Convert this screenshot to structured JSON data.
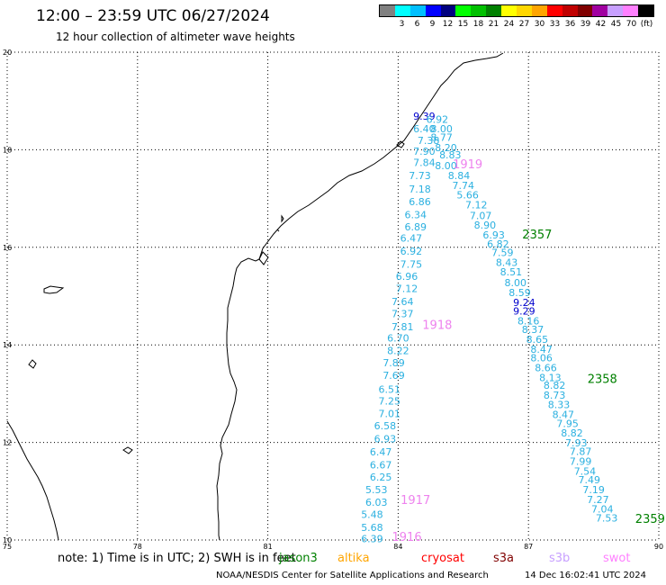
{
  "header": {
    "title": "12:00 – 23:59 UTC 06/27/2024",
    "subtitle": "12 hour collection of altimeter wave heights"
  },
  "legend": {
    "swatches": [
      {
        "color": "#808080",
        "label": ""
      },
      {
        "color": "#00ffff",
        "label": "3"
      },
      {
        "color": "#00bfff",
        "label": "6"
      },
      {
        "color": "#0000ff",
        "label": "9"
      },
      {
        "color": "#000080",
        "label": "12"
      },
      {
        "color": "#00ff00",
        "label": "15"
      },
      {
        "color": "#00c000",
        "label": "18"
      },
      {
        "color": "#008000",
        "label": "21"
      },
      {
        "color": "#ffff00",
        "label": "24"
      },
      {
        "color": "#ffd700",
        "label": "27"
      },
      {
        "color": "#ffa500",
        "label": "30"
      },
      {
        "color": "#ff0000",
        "label": "33"
      },
      {
        "color": "#c00000",
        "label": "36"
      },
      {
        "color": "#800000",
        "label": "39"
      },
      {
        "color": "#a000a0",
        "label": "42"
      },
      {
        "color": "#c8a0ff",
        "label": "45"
      },
      {
        "color": "#ff80ff",
        "label": "70"
      },
      {
        "color": "#000000",
        "label": "(ft)"
      }
    ]
  },
  "map": {
    "lon_ticks": [
      "75",
      "78",
      "81",
      "84",
      "87",
      "90"
    ],
    "lat_ticks": [
      "20",
      "18",
      "16",
      "14",
      "12",
      "10"
    ],
    "colors": {
      "light": "#2bb0e0",
      "medium": "#0000cd",
      "time_green": "#008000",
      "time_pink": "#ee82ee"
    },
    "track_west": [
      {
        "v": "9.39",
        "lon": 84.6,
        "lat": 18.62,
        "c": "medium"
      },
      {
        "v": "6.92",
        "lon": 84.9,
        "lat": 18.55,
        "c": "light"
      },
      {
        "v": "6.40",
        "lon": 84.6,
        "lat": 18.36,
        "c": "light"
      },
      {
        "v": "8.00",
        "lon": 85.0,
        "lat": 18.36,
        "c": "light"
      },
      {
        "v": "8.77",
        "lon": 85.0,
        "lat": 18.18,
        "c": "light"
      },
      {
        "v": "7.38",
        "lon": 84.7,
        "lat": 18.12,
        "c": "light"
      },
      {
        "v": "8.20",
        "lon": 85.1,
        "lat": 17.97,
        "c": "light"
      },
      {
        "v": "7.90",
        "lon": 84.6,
        "lat": 17.9,
        "c": "light"
      },
      {
        "v": "8.83",
        "lon": 85.2,
        "lat": 17.82,
        "c": "light"
      },
      {
        "v": "7.84",
        "lon": 84.6,
        "lat": 17.67,
        "c": "light"
      },
      {
        "v": "8.00",
        "lon": 85.1,
        "lat": 17.6,
        "c": "light"
      },
      {
        "v": "7.73",
        "lon": 84.5,
        "lat": 17.4,
        "c": "light"
      },
      {
        "v": "8.84",
        "lon": 85.4,
        "lat": 17.4,
        "c": "light"
      },
      {
        "v": "7.74",
        "lon": 85.5,
        "lat": 17.2,
        "c": "light"
      },
      {
        "v": "7.18",
        "lon": 84.5,
        "lat": 17.12,
        "c": "light"
      },
      {
        "v": "5.66",
        "lon": 85.6,
        "lat": 17.0,
        "c": "light"
      },
      {
        "v": "6.86",
        "lon": 84.5,
        "lat": 16.86,
        "c": "light"
      },
      {
        "v": "7.12",
        "lon": 85.8,
        "lat": 16.8,
        "c": "light"
      },
      {
        "v": "6.34",
        "lon": 84.4,
        "lat": 16.6,
        "c": "light"
      },
      {
        "v": "7.07",
        "lon": 85.9,
        "lat": 16.58,
        "c": "light"
      },
      {
        "v": "8.90",
        "lon": 86.0,
        "lat": 16.38,
        "c": "light"
      },
      {
        "v": "6.89",
        "lon": 84.4,
        "lat": 16.35,
        "c": "light"
      },
      {
        "v": "6.93",
        "lon": 86.2,
        "lat": 16.18,
        "c": "light"
      },
      {
        "v": "6.47",
        "lon": 84.3,
        "lat": 16.12,
        "c": "light"
      },
      {
        "v": "6.82",
        "lon": 86.3,
        "lat": 16.0,
        "c": "light"
      },
      {
        "v": "6.92",
        "lon": 84.3,
        "lat": 15.85,
        "c": "light"
      },
      {
        "v": "7.59",
        "lon": 86.4,
        "lat": 15.82,
        "c": "light"
      },
      {
        "v": "8.43",
        "lon": 86.5,
        "lat": 15.62,
        "c": "light"
      },
      {
        "v": "7.75",
        "lon": 84.3,
        "lat": 15.58,
        "c": "light"
      },
      {
        "v": "8.51",
        "lon": 86.6,
        "lat": 15.42,
        "c": "light"
      },
      {
        "v": "6.96",
        "lon": 84.2,
        "lat": 15.33,
        "c": "light"
      },
      {
        "v": "8.00",
        "lon": 86.7,
        "lat": 15.2,
        "c": "light"
      },
      {
        "v": "7.12",
        "lon": 84.2,
        "lat": 15.08,
        "c": "light"
      },
      {
        "v": "8.59",
        "lon": 86.8,
        "lat": 15.0,
        "c": "light"
      },
      {
        "v": "7.64",
        "lon": 84.1,
        "lat": 14.82,
        "c": "light"
      },
      {
        "v": "9.24",
        "lon": 86.9,
        "lat": 14.8,
        "c": "medium"
      },
      {
        "v": "9.29",
        "lon": 86.9,
        "lat": 14.62,
        "c": "medium"
      },
      {
        "v": "7.37",
        "lon": 84.1,
        "lat": 14.57,
        "c": "light"
      },
      {
        "v": "8.16",
        "lon": 87.0,
        "lat": 14.42,
        "c": "light"
      },
      {
        "v": "7.81",
        "lon": 84.1,
        "lat": 14.3,
        "c": "light"
      },
      {
        "v": "8.37",
        "lon": 87.1,
        "lat": 14.24,
        "c": "light"
      },
      {
        "v": "6.70",
        "lon": 84.0,
        "lat": 14.07,
        "c": "light"
      },
      {
        "v": "8.65",
        "lon": 87.2,
        "lat": 14.04,
        "c": "light"
      },
      {
        "v": "8.47",
        "lon": 87.3,
        "lat": 13.84,
        "c": "light"
      },
      {
        "v": "8.22",
        "lon": 84.0,
        "lat": 13.81,
        "c": "light"
      },
      {
        "v": "8.06",
        "lon": 87.3,
        "lat": 13.66,
        "c": "light"
      },
      {
        "v": "7.89",
        "lon": 83.9,
        "lat": 13.56,
        "c": "light"
      },
      {
        "v": "8.66",
        "lon": 87.4,
        "lat": 13.46,
        "c": "light"
      },
      {
        "v": "7.69",
        "lon": 83.9,
        "lat": 13.3,
        "c": "light"
      },
      {
        "v": "8.13",
        "lon": 87.5,
        "lat": 13.26,
        "c": "light"
      },
      {
        "v": "8.82",
        "lon": 87.6,
        "lat": 13.1,
        "c": "light"
      },
      {
        "v": "6.51",
        "lon": 83.8,
        "lat": 13.02,
        "c": "light"
      },
      {
        "v": "8.73",
        "lon": 87.6,
        "lat": 12.9,
        "c": "light"
      },
      {
        "v": "7.25",
        "lon": 83.8,
        "lat": 12.78,
        "c": "light"
      },
      {
        "v": "8.33",
        "lon": 87.7,
        "lat": 12.7,
        "c": "light"
      },
      {
        "v": "7.01",
        "lon": 83.8,
        "lat": 12.52,
        "c": "light"
      },
      {
        "v": "8.47",
        "lon": 87.8,
        "lat": 12.5,
        "c": "light"
      },
      {
        "v": "7.95",
        "lon": 87.9,
        "lat": 12.32,
        "c": "light"
      },
      {
        "v": "6.58",
        "lon": 83.7,
        "lat": 12.27,
        "c": "light"
      },
      {
        "v": "8.82",
        "lon": 88.0,
        "lat": 12.12,
        "c": "light"
      },
      {
        "v": "6.93",
        "lon": 83.7,
        "lat": 12.0,
        "c": "light"
      },
      {
        "v": "7.93",
        "lon": 88.1,
        "lat": 11.92,
        "c": "light"
      },
      {
        "v": "6.47",
        "lon": 83.6,
        "lat": 11.73,
        "c": "light"
      },
      {
        "v": "7.87",
        "lon": 88.2,
        "lat": 11.74,
        "c": "light"
      },
      {
        "v": "7.99",
        "lon": 88.2,
        "lat": 11.54,
        "c": "light"
      },
      {
        "v": "6.67",
        "lon": 83.6,
        "lat": 11.47,
        "c": "light"
      },
      {
        "v": "7.54",
        "lon": 88.3,
        "lat": 11.34,
        "c": "light"
      },
      {
        "v": "6.25",
        "lon": 83.6,
        "lat": 11.22,
        "c": "light"
      },
      {
        "v": "7.49",
        "lon": 88.4,
        "lat": 11.16,
        "c": "light"
      },
      {
        "v": "5.53",
        "lon": 83.5,
        "lat": 10.96,
        "c": "light"
      },
      {
        "v": "7.19",
        "lon": 88.5,
        "lat": 10.96,
        "c": "light"
      },
      {
        "v": "7.27",
        "lon": 88.6,
        "lat": 10.76,
        "c": "light"
      },
      {
        "v": "6.03",
        "lon": 83.5,
        "lat": 10.7,
        "c": "light"
      },
      {
        "v": "7.04",
        "lon": 88.7,
        "lat": 10.56,
        "c": "light"
      },
      {
        "v": "5.48",
        "lon": 83.4,
        "lat": 10.45,
        "c": "light"
      },
      {
        "v": "7.53",
        "lon": 88.8,
        "lat": 10.38,
        "c": "light"
      },
      {
        "v": "5.68",
        "lon": 83.4,
        "lat": 10.18,
        "c": "light"
      },
      {
        "v": "6.39",
        "lon": 83.4,
        "lat": 9.95,
        "c": "light"
      }
    ],
    "time_labels": [
      {
        "t": "1919",
        "lon": 85.6,
        "lat": 17.62,
        "c": "time_pink"
      },
      {
        "t": "2357",
        "lon": 87.2,
        "lat": 16.18,
        "c": "time_green"
      },
      {
        "t": "1918",
        "lon": 84.9,
        "lat": 14.33,
        "c": "time_pink"
      },
      {
        "t": "2358",
        "lon": 88.7,
        "lat": 13.22,
        "c": "time_green"
      },
      {
        "t": "1917",
        "lon": 84.4,
        "lat": 10.74,
        "c": "time_pink"
      },
      {
        "t": "2359",
        "lon": 89.8,
        "lat": 10.35,
        "c": "time_green"
      },
      {
        "t": "1916",
        "lon": 84.2,
        "lat": 9.98,
        "c": "time_pink"
      }
    ]
  },
  "footer": {
    "note": "note:  1) Time is in UTC; 2) SWH is in feet",
    "satellites": [
      {
        "name": "jason3",
        "color": "#008000"
      },
      {
        "name": "altika",
        "color": "#ffa500"
      },
      {
        "name": "cryosat",
        "color": "#ff0000"
      },
      {
        "name": "s3a",
        "color": "#800000"
      },
      {
        "name": "s3b",
        "color": "#c8a0ff"
      },
      {
        "name": "swot",
        "color": "#ff80ff"
      }
    ],
    "credit": "NOAA/NESDIS Center for Satellite Applications and Research",
    "timestamp": "14 Dec 16:02:41 UTC 2024"
  }
}
